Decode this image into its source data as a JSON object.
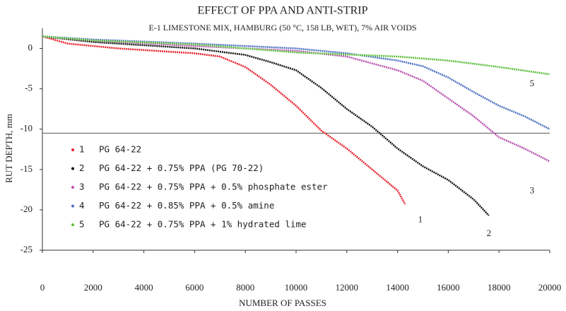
{
  "chart_data": {
    "type": "line",
    "title": "EFFECT OF PPA AND ANTI-STRIP",
    "subtitle": "E-1 LIMESTONE MIX, HAMBURG (50 °C, 158 LB, WET), 7% AIR VOIDS",
    "x_label": "NUMBER OF PASSES",
    "y_label": "RUT DEPTH, mm",
    "xlim": [
      0,
      20000
    ],
    "xticks": [
      0,
      2000,
      4000,
      6000,
      8000,
      10000,
      12000,
      14000,
      16000,
      18000,
      20000
    ],
    "ylim": [
      -25,
      2.5
    ],
    "yticks": [
      0,
      -5,
      -10,
      -15,
      -20,
      -25
    ],
    "hline": -10.5,
    "series": [
      {
        "name": "1",
        "label": "PG 64-22",
        "color": "#e8202a",
        "x": [
          0,
          1000,
          2000,
          3000,
          4000,
          5000,
          6000,
          7000,
          8000,
          9000,
          10000,
          11000,
          12000,
          13000,
          14000,
          14300
        ],
        "values": [
          1.5,
          0.6,
          0.3,
          0,
          -0.2,
          -0.4,
          -0.6,
          -1,
          -2.3,
          -4.5,
          -7.1,
          -10.2,
          -12.4,
          -15,
          -17.6,
          -19.3
        ]
      },
      {
        "name": "2",
        "label": "PG 64-22 + 0.75% PPA (PG 70-22)",
        "color": "#111111",
        "x": [
          0,
          2000,
          4000,
          6000,
          8000,
          9000,
          10000,
          11000,
          12000,
          13000,
          14000,
          15000,
          16000,
          17000,
          17600
        ],
        "values": [
          1.5,
          0.8,
          0.4,
          0,
          -0.8,
          -1.7,
          -2.7,
          -4.9,
          -7.5,
          -9.7,
          -12.4,
          -14.6,
          -16.3,
          -18.7,
          -20.7
        ]
      },
      {
        "name": "3",
        "label": "PG 64-22 + 0.75% PPA + 0.5% phosphate ester",
        "color": "#b94fb0",
        "x": [
          0,
          2000,
          6000,
          10000,
          12000,
          14000,
          15000,
          16000,
          17000,
          18000,
          19000,
          20000
        ],
        "values": [
          1.5,
          1,
          0.3,
          -0.3,
          -1,
          -2.7,
          -4,
          -6.2,
          -8.4,
          -11,
          -12.4,
          -14
        ]
      },
      {
        "name": "4",
        "label": "PG 64-22 + 0.85% PPA + 0.5% amine",
        "color": "#4a6fc0",
        "x": [
          0,
          2000,
          6000,
          10000,
          12000,
          14000,
          15000,
          16000,
          17000,
          18000,
          19000,
          20000
        ],
        "values": [
          1.5,
          1.1,
          0.6,
          0,
          -0.6,
          -1.5,
          -2.2,
          -3.6,
          -5.4,
          -7.1,
          -8.4,
          -10
        ]
      },
      {
        "name": "5",
        "label": "PG 64-22 + 0.75% PPA + 1% hydrated lime",
        "color": "#5cbf3c",
        "x": [
          0,
          2000,
          6000,
          10000,
          14000,
          16000,
          18000,
          20000
        ],
        "values": [
          1.5,
          1,
          0.5,
          -0.5,
          -1,
          -1.5,
          -2.3,
          -3.2
        ]
      }
    ],
    "annotations": [
      {
        "text": "1",
        "x": 14900,
        "y": -21.3
      },
      {
        "text": "2",
        "x": 17600,
        "y": -23
      },
      {
        "text": "3",
        "x": 19300,
        "y": -17.7
      },
      {
        "text": "5",
        "x": 19300,
        "y": -4.4
      }
    ]
  }
}
